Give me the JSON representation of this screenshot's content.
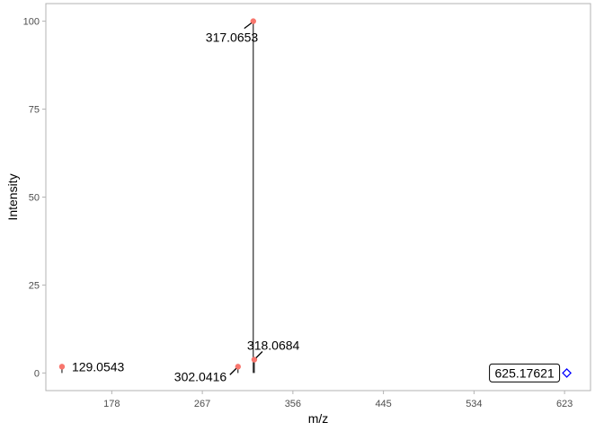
{
  "chart_data": {
    "type": "scatter",
    "title": "",
    "xlabel": "m/z",
    "ylabel": "Intensity",
    "xlim": [
      113.2,
      648.5
    ],
    "ylim": [
      -5,
      105
    ],
    "xticks": [
      178,
      267,
      356,
      445,
      534,
      623
    ],
    "yticks": [
      0,
      25,
      50,
      75,
      100
    ],
    "grid": false,
    "colors": {
      "peak_point": "#F8766D",
      "precursor_marker": "#0000FF",
      "stem": "#000000",
      "panel_border": "#B3B3B3",
      "tick_text": "#4D4D4D"
    },
    "peaks": [
      {
        "mz": 129.0543,
        "intensity": 1.8,
        "label": "129.0543",
        "label_side": "right"
      },
      {
        "mz": 302.0416,
        "intensity": 1.8,
        "label": "302.0416",
        "label_side": "below-left"
      },
      {
        "mz": 317.0653,
        "intensity": 100,
        "label": "317.0653",
        "label_side": "below-left"
      },
      {
        "mz": 318.0684,
        "intensity": 3.8,
        "label": "318.0684",
        "label_side": "above-right"
      }
    ],
    "precursor": {
      "mz": 625.17621,
      "intensity": 0,
      "label": "625.17621",
      "marker": "diamond-open"
    }
  }
}
